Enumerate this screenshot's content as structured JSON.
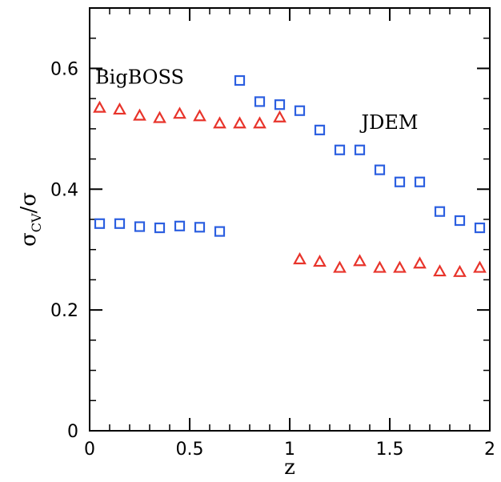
{
  "chart_data": {
    "type": "scatter",
    "title": "",
    "xlabel": "z",
    "ylabel": {
      "main": "σ",
      "sub": "CV",
      "tail": "/σ"
    },
    "xlim": [
      0,
      2
    ],
    "ylim": [
      0,
      0.7
    ],
    "x_ticks": [
      {
        "value": 0,
        "label": "0"
      },
      {
        "value": 0.5,
        "label": "0.5"
      },
      {
        "value": 1,
        "label": "1"
      },
      {
        "value": 1.5,
        "label": "1.5"
      },
      {
        "value": 2,
        "label": "2"
      }
    ],
    "y_ticks": [
      {
        "value": 0,
        "label": "0"
      },
      {
        "value": 0.2,
        "label": "0.2"
      },
      {
        "value": 0.4,
        "label": "0.4"
      },
      {
        "value": 0.6,
        "label": "0.6"
      }
    ],
    "grid": false,
    "annotations": [
      {
        "text": "BigBOSS",
        "x": 0.25,
        "y": 0.575
      },
      {
        "text": "JDEM",
        "x": 1.5,
        "y": 0.5
      }
    ],
    "series": [
      {
        "marker": "triangle",
        "color": "#e8342b",
        "points": [
          {
            "x": 0.05,
            "y": 0.535
          },
          {
            "x": 0.15,
            "y": 0.532
          },
          {
            "x": 0.25,
            "y": 0.522
          },
          {
            "x": 0.35,
            "y": 0.518
          },
          {
            "x": 0.45,
            "y": 0.525
          },
          {
            "x": 0.55,
            "y": 0.521
          },
          {
            "x": 0.65,
            "y": 0.509
          },
          {
            "x": 0.75,
            "y": 0.509
          },
          {
            "x": 0.85,
            "y": 0.509
          },
          {
            "x": 0.95,
            "y": 0.519
          },
          {
            "x": 1.05,
            "y": 0.284
          },
          {
            "x": 1.15,
            "y": 0.28
          },
          {
            "x": 1.25,
            "y": 0.27
          },
          {
            "x": 1.35,
            "y": 0.281
          },
          {
            "x": 1.45,
            "y": 0.27
          },
          {
            "x": 1.55,
            "y": 0.27
          },
          {
            "x": 1.65,
            "y": 0.277
          },
          {
            "x": 1.75,
            "y": 0.264
          },
          {
            "x": 1.85,
            "y": 0.263
          },
          {
            "x": 1.95,
            "y": 0.27
          }
        ]
      },
      {
        "marker": "square",
        "color": "#2c5fe0",
        "points": [
          {
            "x": 0.05,
            "y": 0.343
          },
          {
            "x": 0.15,
            "y": 0.343
          },
          {
            "x": 0.25,
            "y": 0.338
          },
          {
            "x": 0.35,
            "y": 0.336
          },
          {
            "x": 0.45,
            "y": 0.339
          },
          {
            "x": 0.55,
            "y": 0.337
          },
          {
            "x": 0.65,
            "y": 0.33
          },
          {
            "x": 0.75,
            "y": 0.58
          },
          {
            "x": 0.85,
            "y": 0.545
          },
          {
            "x": 0.95,
            "y": 0.54
          },
          {
            "x": 1.05,
            "y": 0.53
          },
          {
            "x": 1.15,
            "y": 0.498
          },
          {
            "x": 1.25,
            "y": 0.465
          },
          {
            "x": 1.35,
            "y": 0.465
          },
          {
            "x": 1.45,
            "y": 0.432
          },
          {
            "x": 1.55,
            "y": 0.412
          },
          {
            "x": 1.65,
            "y": 0.412
          },
          {
            "x": 1.75,
            "y": 0.363
          },
          {
            "x": 1.85,
            "y": 0.348
          },
          {
            "x": 1.95,
            "y": 0.336
          }
        ]
      }
    ]
  }
}
